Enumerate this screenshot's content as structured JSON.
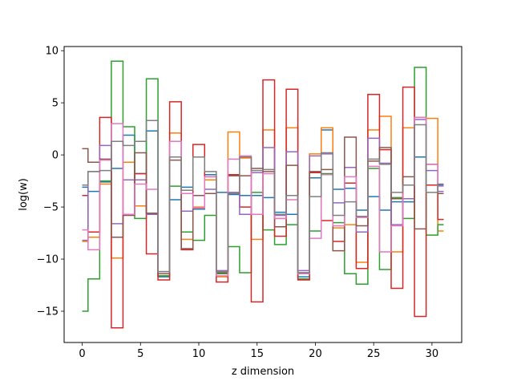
{
  "chart_data": {
    "type": "line",
    "drawstyle": "steps-mid",
    "title": "",
    "xlabel": "z dimension",
    "ylabel": "log(w)",
    "xlim": [
      -1.55,
      32.55
    ],
    "ylim": [
      -18.0,
      10.4
    ],
    "xticks": [
      0,
      5,
      10,
      15,
      20,
      25,
      30
    ],
    "yticks": [
      -15,
      -10,
      -5,
      0,
      5,
      10
    ],
    "grid": false,
    "legend": "none",
    "x": [
      0,
      1,
      2,
      3,
      4,
      5,
      6,
      7,
      8,
      9,
      10,
      11,
      12,
      13,
      14,
      15,
      16,
      17,
      18,
      19,
      20,
      21,
      22,
      23,
      24,
      25,
      26,
      27,
      28,
      29,
      30,
      31
    ],
    "series": [
      {
        "color": "#1f77b4",
        "values": [
          -3.1,
          -3.5,
          -2.6,
          -1.3,
          1.9,
          -1.8,
          2.3,
          -11.7,
          -4.3,
          -3.1,
          -5.2,
          -1.9,
          -3.6,
          -3.8,
          -3.9,
          -3.9,
          -4.1,
          -5.5,
          -5.7,
          -11.7,
          -2.2,
          2.4,
          -3.3,
          -3.2,
          -5.3,
          -4.0,
          -5.3,
          -4.5,
          -4.5,
          -0.2,
          -2.9,
          -2.9
        ]
      },
      {
        "color": "#ff7f0e",
        "values": [
          -8.3,
          -7.9,
          -2.8,
          -9.9,
          -0.7,
          -4.9,
          -5.6,
          -11.6,
          2.1,
          -8.1,
          -5.0,
          -2.4,
          -11.7,
          2.2,
          -0.3,
          -8.1,
          2.4,
          -6.1,
          2.6,
          -11.4,
          0.1,
          2.6,
          -7.0,
          -6.7,
          -10.3,
          2.4,
          3.7,
          -9.3,
          2.6,
          3.6,
          3.5,
          -7.3
        ]
      },
      {
        "color": "#2ca02c",
        "values": [
          -15.0,
          -11.9,
          -2.5,
          9.0,
          2.7,
          -6.1,
          7.3,
          -11.6,
          -3.0,
          -7.4,
          -8.2,
          -5.8,
          -11.4,
          -8.8,
          -11.3,
          -3.6,
          -7.2,
          -8.6,
          -6.7,
          -11.9,
          -7.3,
          -1.8,
          -6.5,
          -11.4,
          -12.4,
          -1.3,
          -11.0,
          -4.1,
          -6.1,
          8.4,
          -7.7,
          -6.7
        ]
      },
      {
        "color": "#d62728",
        "values": [
          -3.9,
          -7.4,
          3.6,
          -16.6,
          -5.7,
          -1.8,
          -9.5,
          -12.0,
          5.1,
          -9.1,
          1.0,
          -2.1,
          -12.2,
          -1.9,
          -5.0,
          -14.1,
          7.2,
          -7.8,
          6.3,
          -12.0,
          -1.7,
          -6.3,
          -8.3,
          -2.7,
          -10.9,
          5.8,
          0.5,
          -12.8,
          6.5,
          -15.5,
          -2.9,
          -6.2
        ]
      },
      {
        "color": "#9467bd",
        "values": [
          -8.2,
          -1.6,
          0.9,
          -6.6,
          -2.4,
          -2.4,
          -5.7,
          -11.4,
          1.3,
          -5.4,
          -3.9,
          -3.3,
          -11.1,
          -3.6,
          -5.7,
          -1.7,
          0.7,
          -5.8,
          0.3,
          -11.1,
          -0.1,
          0.1,
          -4.6,
          -1.2,
          -7.4,
          1.6,
          -0.8,
          -6.7,
          -4.2,
          3.4,
          -1.5,
          -3.5
        ]
      },
      {
        "color": "#8c564b",
        "values": [
          0.6,
          -0.7,
          -0.4,
          -7.9,
          -5.8,
          0.2,
          -5.6,
          -11.4,
          -0.5,
          -9.0,
          -3.9,
          -3.7,
          -11.3,
          -2.0,
          -2.0,
          -1.3,
          -1.6,
          -6.9,
          -1.0,
          -11.3,
          -1.6,
          -1.4,
          -9.2,
          1.7,
          -6.8,
          -0.6,
          0.7,
          -4.2,
          -2.1,
          -7.1,
          -0.9,
          -3.7
        ]
      },
      {
        "color": "#e377c2",
        "values": [
          -7.2,
          -9.1,
          -0.5,
          3.0,
          -5.7,
          -2.8,
          -3.3,
          -11.2,
          1.3,
          -3.7,
          -5.1,
          -2.1,
          -11.6,
          -0.4,
          -0.1,
          -5.7,
          -1.8,
          -6.1,
          -4.3,
          -11.4,
          -8.0,
          -1.9,
          -6.8,
          -2.1,
          -6.0,
          -1.1,
          -9.3,
          -6.8,
          -2.9,
          3.6,
          -0.9,
          -3.0
        ]
      },
      {
        "color": "#7f7f7f",
        "values": [
          -2.9,
          -1.6,
          -1.5,
          1.3,
          0.9,
          1.3,
          3.3,
          -11.2,
          -0.2,
          -3.4,
          -0.2,
          -1.6,
          -11.2,
          -3.7,
          -0.2,
          -1.5,
          -1.4,
          -5.7,
          -3.9,
          -11.3,
          -4.0,
          0.2,
          -5.8,
          -4.5,
          -5.9,
          -0.4,
          -0.9,
          -3.6,
          -2.9,
          2.9,
          -3.6,
          -2.8
        ]
      }
    ]
  }
}
